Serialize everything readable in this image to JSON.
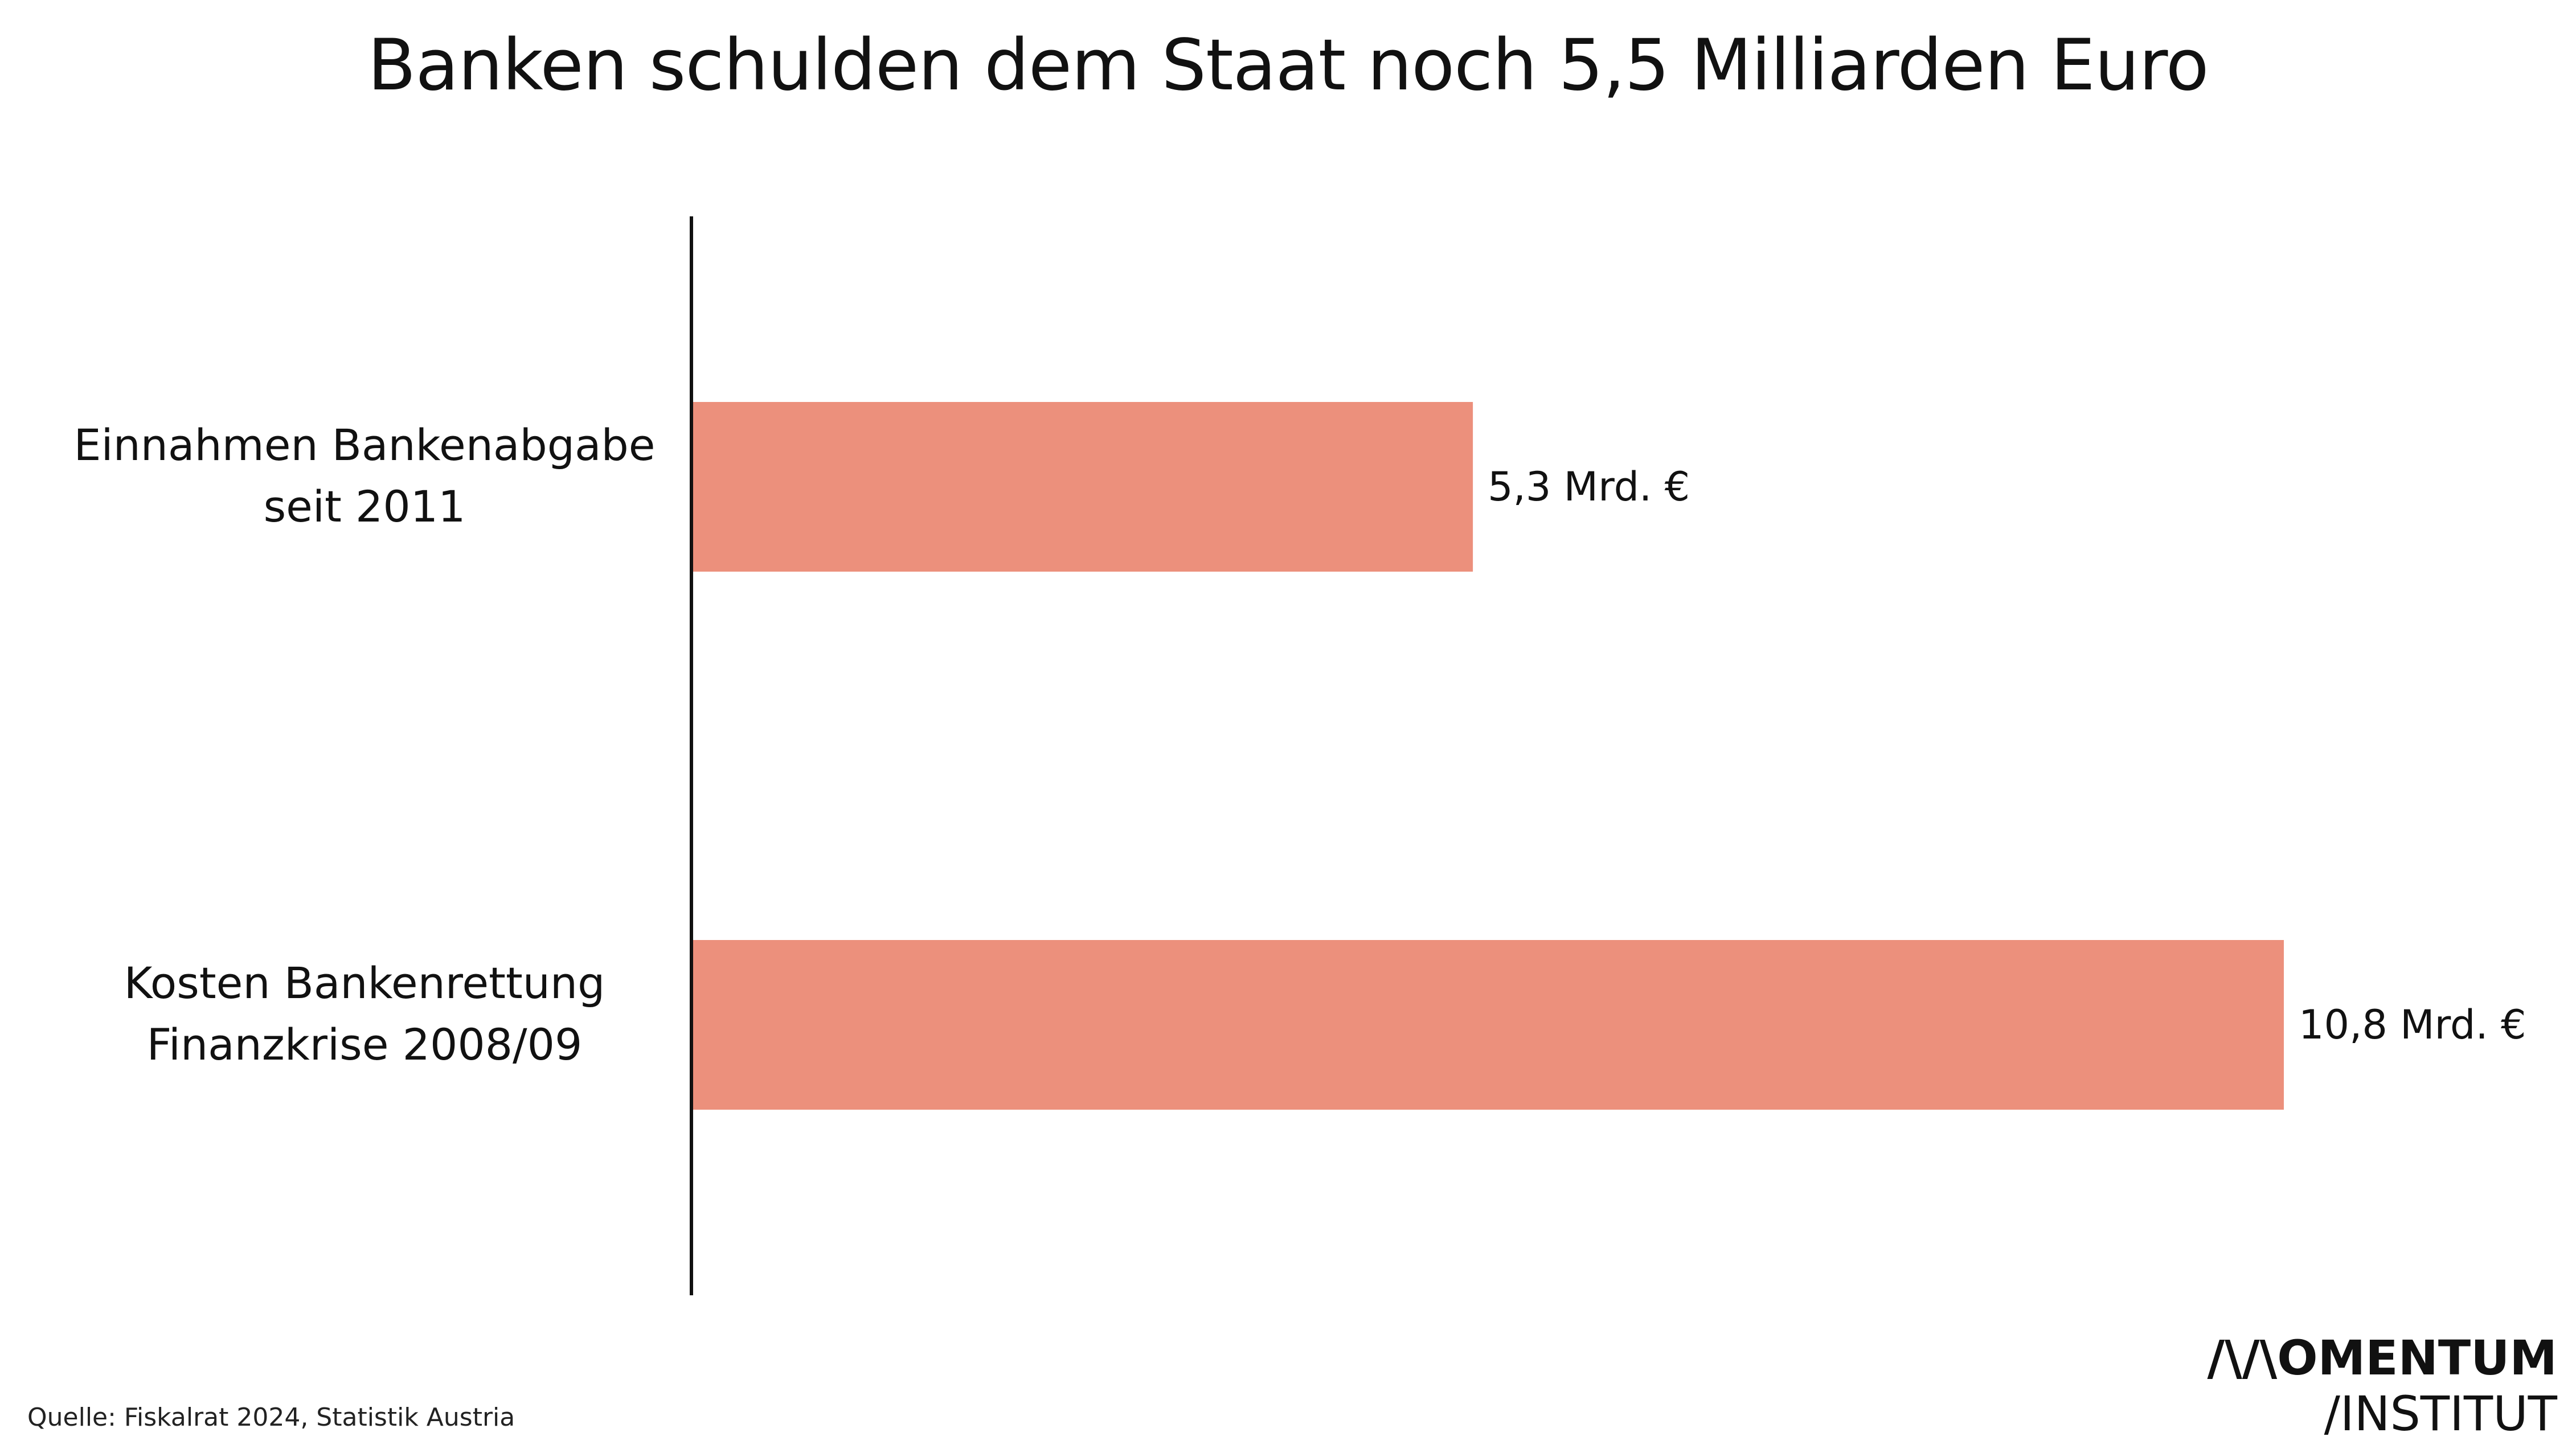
{
  "title": "Banken schulden dem Staat noch 5,5 Milliarden Euro",
  "source": "Quelle: Fiskalrat 2024, Statistik Austria",
  "logo": {
    "line1": "/\\/\\OMENTUM",
    "line2": "/INSTITUT"
  },
  "colors": {
    "bar": "#EC907C",
    "axis": "#111111",
    "text": "#111111"
  },
  "chart_data": {
    "type": "bar",
    "orientation": "horizontal",
    "categories": [
      [
        "Einnahmen Bankenabgabe",
        "seit 2011"
      ],
      [
        "Kosten Bankenrettung",
        "Finanzkrise 2008/09"
      ]
    ],
    "values": [
      5.3,
      10.8
    ],
    "value_labels": [
      "5,3 Mrd. €",
      "10,8 Mrd. €"
    ],
    "xlim": [
      0,
      10.8
    ],
    "grid": false
  }
}
